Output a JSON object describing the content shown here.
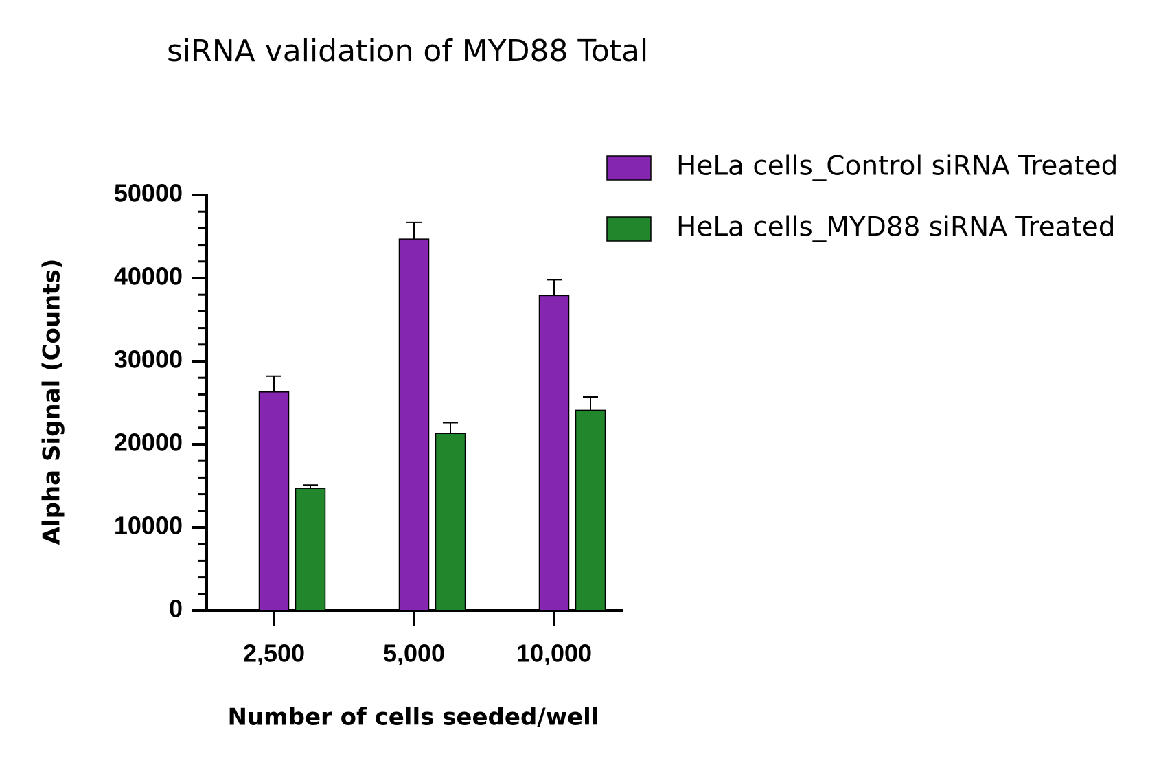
{
  "chart_data": {
    "type": "bar",
    "title": "siRNA validation of MYD88 Total",
    "x_label": "Number of cells seeded/well",
    "y_label": "Alpha Signal (Counts)",
    "categories": [
      "2,500",
      "5,000",
      "10,000"
    ],
    "series": [
      {
        "name": "HeLa cells_Control siRNA Treated",
        "color": "#8526b0",
        "values": [
          26300,
          44700,
          37900
        ],
        "errors": [
          1900,
          2000,
          1900
        ]
      },
      {
        "name": "HeLa cells_MYD88 siRNA Treated",
        "color": "#22862c",
        "values": [
          14700,
          21300,
          24100
        ],
        "errors": [
          400,
          1300,
          1600
        ]
      }
    ],
    "ylim": [
      0,
      50000
    ],
    "yticks": [
      0,
      10000,
      20000,
      30000,
      40000,
      50000
    ],
    "minor_yticks": [
      2000,
      4000,
      6000,
      8000,
      12000,
      14000,
      16000,
      18000,
      22000,
      24000,
      26000,
      28000,
      32000,
      34000,
      36000,
      38000,
      42000,
      44000,
      46000,
      48000
    ],
    "legend": "upper right"
  }
}
